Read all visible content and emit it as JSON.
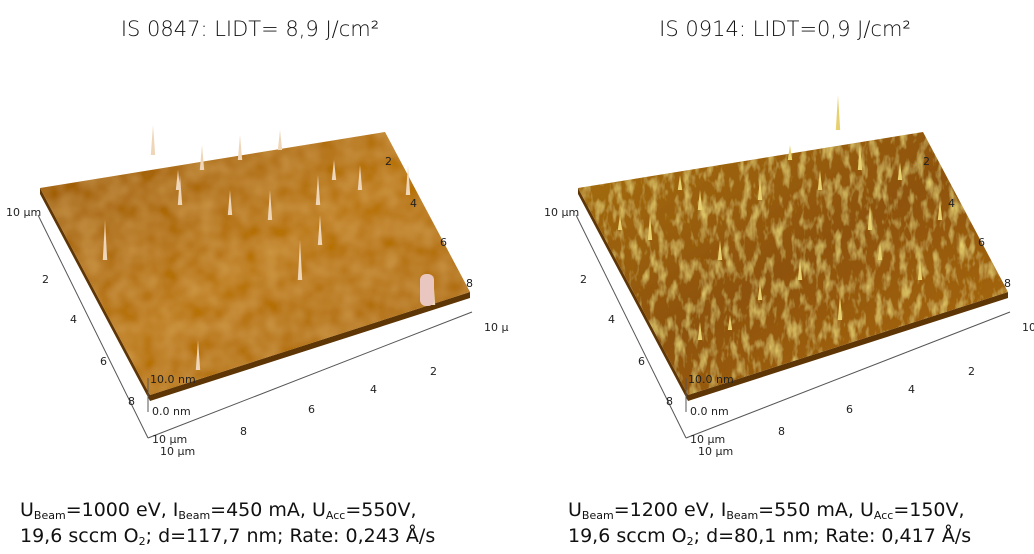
{
  "panels": [
    {
      "title": "IS 0847: LIDT= 8,9 J/cm²",
      "axes": {
        "left": [
          "10 µm",
          "2",
          "4",
          "6",
          "8",
          "10 µm"
        ],
        "front": [
          "10 µm",
          "8",
          "6",
          "4",
          "2"
        ],
        "right": [
          "2",
          "4",
          "6",
          "8",
          "10 µ"
        ],
        "z": [
          "10.0 nm",
          "0.0 nm"
        ]
      },
      "caption": [
        [
          {
            "text": "U"
          },
          {
            "sub": "Beam"
          },
          {
            "text": "=1000 eV, I"
          },
          {
            "sub": "Beam"
          },
          {
            "text": "=450 mA, U"
          },
          {
            "sub": "Acc"
          },
          {
            "text": "=550V,"
          }
        ],
        [
          {
            "text": "19,6 sccm O"
          },
          {
            "sub": "2"
          },
          {
            "text": "; d=117,7 nm; Rate: 0,243 Å/s"
          }
        ]
      ]
    },
    {
      "title": "IS 0914: LIDT=0,9 J/cm²",
      "axes": {
        "left": [
          "10 µm",
          "2",
          "4",
          "6",
          "8",
          "10 µm"
        ],
        "front": [
          "10 µm",
          "8",
          "6",
          "4",
          "2"
        ],
        "right": [
          "2",
          "4",
          "6",
          "8",
          "10"
        ],
        "z": [
          "10.0 nm",
          "0.0 nm"
        ]
      },
      "caption": [
        [
          {
            "text": "U"
          },
          {
            "sub": "Beam"
          },
          {
            "text": "=1200 eV, I"
          },
          {
            "sub": "Beam"
          },
          {
            "text": "=550 mA, U"
          },
          {
            "sub": "Acc"
          },
          {
            "text": "=150V,"
          }
        ],
        [
          {
            "text": "19,6 sccm O"
          },
          {
            "sub": "2"
          },
          {
            "text": "; d=80,1 nm; Rate: 0,417 Å/s"
          }
        ]
      ]
    }
  ]
}
